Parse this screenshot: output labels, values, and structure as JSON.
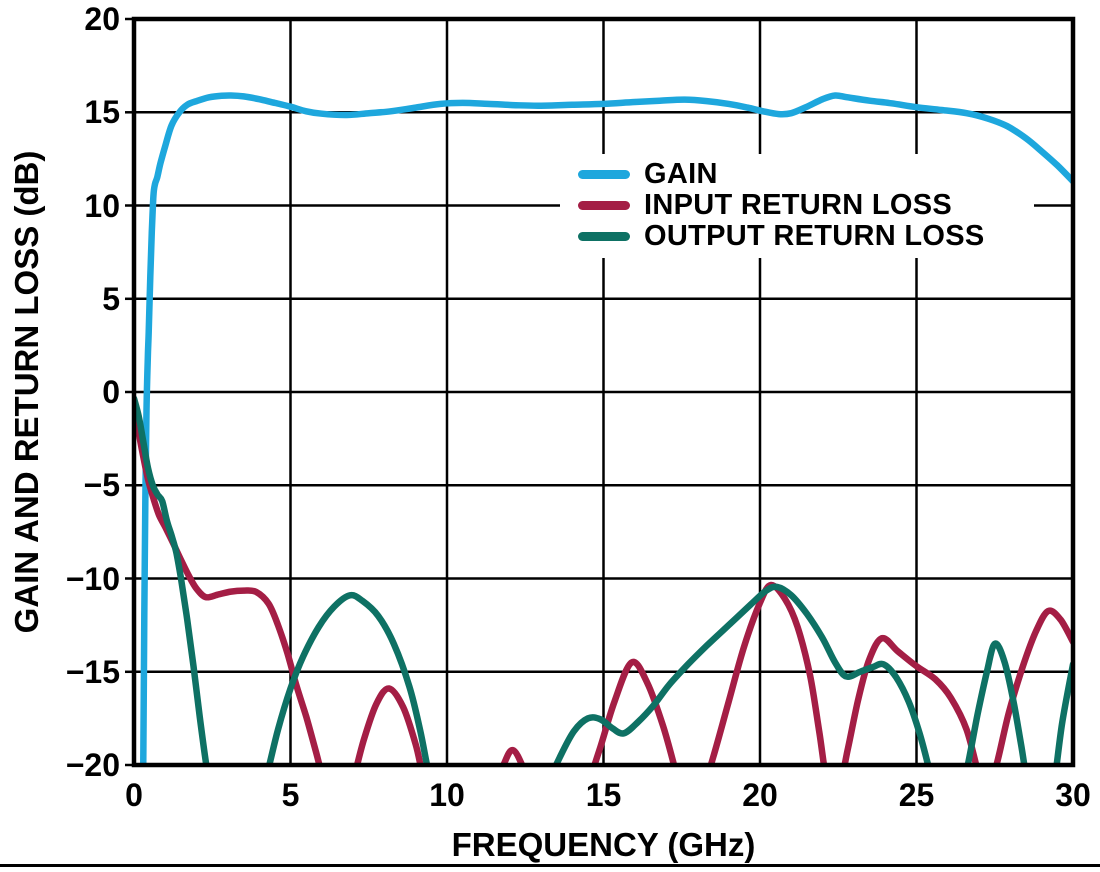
{
  "page": {
    "background": "#ffffff",
    "axis_color": "#000000"
  },
  "chart_data": {
    "type": "line",
    "title": "",
    "xlabel": "FREQUENCY (GHz)",
    "ylabel": "GAIN AND RETURN LOSS (dB)",
    "xlim": [
      0,
      30
    ],
    "ylim": [
      -20,
      20
    ],
    "x_ticks": [
      0,
      5,
      10,
      15,
      20,
      25,
      30
    ],
    "x_tick_labels": [
      "0",
      "5",
      "10",
      "15",
      "20",
      "25",
      "30"
    ],
    "y_ticks": [
      20,
      15,
      10,
      5,
      0,
      -5,
      -10,
      -15,
      -20
    ],
    "y_tick_labels": [
      "20",
      "15",
      "10",
      "5",
      "0",
      "−5",
      "−10",
      "−15",
      "−20"
    ],
    "grid": true,
    "legend_position": "inside-upper-right",
    "series": [
      {
        "id": "gain",
        "name": "GAIN",
        "color": "#1EA7DD",
        "points": [
          [
            0.28,
            -23
          ],
          [
            0.3,
            -19
          ],
          [
            0.33,
            -12
          ],
          [
            0.36,
            -6
          ],
          [
            0.4,
            -1
          ],
          [
            0.44,
            1.8
          ],
          [
            0.47,
            3.2
          ],
          [
            0.52,
            6.2
          ],
          [
            0.57,
            8.6
          ],
          [
            0.62,
            10.5
          ],
          [
            0.67,
            11.15
          ],
          [
            0.74,
            11.5
          ],
          [
            0.85,
            12.3
          ],
          [
            1.0,
            13.2
          ],
          [
            1.2,
            14.3
          ],
          [
            1.45,
            15.0
          ],
          [
            1.7,
            15.4
          ],
          [
            2.0,
            15.6
          ],
          [
            2.4,
            15.8
          ],
          [
            2.8,
            15.88
          ],
          [
            3.1,
            15.9
          ],
          [
            3.5,
            15.85
          ],
          [
            4.0,
            15.7
          ],
          [
            4.5,
            15.5
          ],
          [
            5.0,
            15.3
          ],
          [
            5.5,
            15.05
          ],
          [
            6.0,
            14.92
          ],
          [
            6.8,
            14.85
          ],
          [
            7.5,
            14.95
          ],
          [
            8.2,
            15.05
          ],
          [
            9.0,
            15.25
          ],
          [
            9.8,
            15.45
          ],
          [
            10.5,
            15.5
          ],
          [
            11.3,
            15.45
          ],
          [
            12.2,
            15.38
          ],
          [
            13.0,
            15.35
          ],
          [
            14.0,
            15.4
          ],
          [
            15.0,
            15.45
          ],
          [
            16.0,
            15.55
          ],
          [
            16.8,
            15.62
          ],
          [
            17.6,
            15.68
          ],
          [
            18.3,
            15.6
          ],
          [
            19.0,
            15.45
          ],
          [
            19.6,
            15.25
          ],
          [
            20.1,
            15.05
          ],
          [
            20.6,
            14.9
          ],
          [
            21.0,
            14.95
          ],
          [
            21.5,
            15.3
          ],
          [
            22.0,
            15.7
          ],
          [
            22.4,
            15.9
          ],
          [
            22.8,
            15.8
          ],
          [
            23.5,
            15.62
          ],
          [
            24.2,
            15.48
          ],
          [
            25.0,
            15.27
          ],
          [
            25.8,
            15.12
          ],
          [
            26.6,
            14.95
          ],
          [
            27.3,
            14.65
          ],
          [
            27.9,
            14.25
          ],
          [
            28.5,
            13.6
          ],
          [
            29.0,
            12.9
          ],
          [
            29.5,
            12.15
          ],
          [
            30.0,
            11.3
          ]
        ]
      },
      {
        "id": "input-return-loss",
        "name": "INPUT RETURN LOSS",
        "color": "#A41E45",
        "points": [
          [
            0,
            -0.9
          ],
          [
            0.15,
            -2.2
          ],
          [
            0.3,
            -3.5
          ],
          [
            0.45,
            -4.7
          ],
          [
            0.62,
            -5.7
          ],
          [
            0.8,
            -6.6
          ],
          [
            1.0,
            -7.25
          ],
          [
            1.25,
            -8.1
          ],
          [
            1.5,
            -9.0
          ],
          [
            1.75,
            -9.85
          ],
          [
            2.0,
            -10.55
          ],
          [
            2.3,
            -11.0
          ],
          [
            2.7,
            -10.85
          ],
          [
            3.1,
            -10.7
          ],
          [
            3.5,
            -10.65
          ],
          [
            3.9,
            -10.72
          ],
          [
            4.3,
            -11.35
          ],
          [
            4.6,
            -12.5
          ],
          [
            4.9,
            -14.0
          ],
          [
            5.2,
            -15.8
          ],
          [
            5.5,
            -17.4
          ],
          [
            5.8,
            -19.2
          ],
          [
            6.1,
            -21
          ],
          [
            6.6,
            -22.8
          ],
          [
            7.0,
            -20.8
          ],
          [
            7.35,
            -18.6
          ],
          [
            7.75,
            -16.7
          ],
          [
            8.15,
            -15.9
          ],
          [
            8.6,
            -16.9
          ],
          [
            9.0,
            -18.9
          ],
          [
            9.3,
            -21
          ],
          [
            9.8,
            -23.2
          ],
          [
            10.6,
            -23.6
          ],
          [
            11.3,
            -21.8
          ],
          [
            11.75,
            -20.2
          ],
          [
            12.1,
            -19.2
          ],
          [
            12.5,
            -20.4
          ],
          [
            12.9,
            -22.2
          ],
          [
            13.6,
            -23.6
          ],
          [
            14.3,
            -21.9
          ],
          [
            14.85,
            -19.3
          ],
          [
            15.35,
            -16.6
          ],
          [
            15.9,
            -14.5
          ],
          [
            16.4,
            -15.6
          ],
          [
            16.9,
            -17.9
          ],
          [
            17.3,
            -20.3
          ],
          [
            17.6,
            -22.3
          ],
          [
            18.0,
            -22.3
          ],
          [
            18.5,
            -19.6
          ],
          [
            19.0,
            -16.6
          ],
          [
            19.5,
            -13.6
          ],
          [
            20.0,
            -11.3
          ],
          [
            20.35,
            -10.35
          ],
          [
            20.8,
            -11.1
          ],
          [
            21.2,
            -12.6
          ],
          [
            21.6,
            -15.2
          ],
          [
            21.9,
            -18.3
          ],
          [
            22.15,
            -21
          ],
          [
            22.45,
            -21.8
          ],
          [
            22.8,
            -19.2
          ],
          [
            23.15,
            -16.4
          ],
          [
            23.5,
            -14.3
          ],
          [
            23.9,
            -13.2
          ],
          [
            24.4,
            -13.9
          ],
          [
            25.0,
            -14.7
          ],
          [
            25.6,
            -15.4
          ],
          [
            26.1,
            -16.4
          ],
          [
            26.6,
            -18.1
          ],
          [
            27.0,
            -20.6
          ],
          [
            27.25,
            -21.8
          ],
          [
            27.6,
            -19.7
          ],
          [
            27.95,
            -17.2
          ],
          [
            28.4,
            -14.7
          ],
          [
            28.8,
            -12.9
          ],
          [
            29.2,
            -11.75
          ],
          [
            29.6,
            -12.2
          ],
          [
            30.0,
            -13.4
          ]
        ]
      },
      {
        "id": "output-return-loss",
        "name": "OUTPUT RETURN LOSS",
        "color": "#0E7164",
        "points": [
          [
            0,
            -0.35
          ],
          [
            0.15,
            -1.3
          ],
          [
            0.3,
            -2.7
          ],
          [
            0.45,
            -4.1
          ],
          [
            0.6,
            -5.0
          ],
          [
            0.75,
            -5.5
          ],
          [
            0.9,
            -5.85
          ],
          [
            1.05,
            -6.9
          ],
          [
            1.2,
            -7.7
          ],
          [
            1.35,
            -8.6
          ],
          [
            1.5,
            -10.0
          ],
          [
            1.7,
            -12.2
          ],
          [
            1.9,
            -14.7
          ],
          [
            2.1,
            -17.4
          ],
          [
            2.3,
            -19.9
          ],
          [
            2.5,
            -22
          ],
          [
            3.0,
            -24
          ],
          [
            3.7,
            -24
          ],
          [
            4.25,
            -20.5
          ],
          [
            4.6,
            -18.1
          ],
          [
            5.0,
            -15.9
          ],
          [
            5.4,
            -14.2
          ],
          [
            5.9,
            -12.6
          ],
          [
            6.4,
            -11.5
          ],
          [
            6.9,
            -10.9
          ],
          [
            7.3,
            -11.2
          ],
          [
            7.8,
            -12.0
          ],
          [
            8.3,
            -13.5
          ],
          [
            8.8,
            -15.8
          ],
          [
            9.15,
            -18.2
          ],
          [
            9.45,
            -20.7
          ],
          [
            9.9,
            -23.5
          ],
          [
            11.2,
            -25.5
          ],
          [
            12.6,
            -23.8
          ],
          [
            13.15,
            -21.3
          ],
          [
            13.6,
            -19.6
          ],
          [
            14.05,
            -18.2
          ],
          [
            14.5,
            -17.5
          ],
          [
            14.9,
            -17.55
          ],
          [
            15.3,
            -18.05
          ],
          [
            15.65,
            -18.3
          ],
          [
            16.1,
            -17.7
          ],
          [
            16.6,
            -16.8
          ],
          [
            17.1,
            -15.7
          ],
          [
            17.7,
            -14.6
          ],
          [
            18.3,
            -13.6
          ],
          [
            19.0,
            -12.5
          ],
          [
            19.7,
            -11.4
          ],
          [
            20.2,
            -10.65
          ],
          [
            20.55,
            -10.45
          ],
          [
            21.0,
            -10.9
          ],
          [
            21.5,
            -11.9
          ],
          [
            22.0,
            -13.2
          ],
          [
            22.4,
            -14.5
          ],
          [
            22.75,
            -15.25
          ],
          [
            23.2,
            -15.0
          ],
          [
            23.6,
            -14.75
          ],
          [
            23.95,
            -14.6
          ],
          [
            24.35,
            -15.3
          ],
          [
            24.75,
            -16.6
          ],
          [
            25.1,
            -18.3
          ],
          [
            25.4,
            -20.2
          ],
          [
            25.7,
            -22.3
          ],
          [
            26.1,
            -23.3
          ],
          [
            26.55,
            -20.7
          ],
          [
            26.95,
            -17.3
          ],
          [
            27.25,
            -15.0
          ],
          [
            27.5,
            -13.5
          ],
          [
            27.8,
            -14.4
          ],
          [
            28.1,
            -16.6
          ],
          [
            28.35,
            -19.0
          ],
          [
            28.6,
            -21.5
          ],
          [
            29.0,
            -23.8
          ],
          [
            29.35,
            -21.5
          ],
          [
            29.65,
            -17.8
          ],
          [
            30.0,
            -14.6
          ]
        ]
      }
    ]
  }
}
